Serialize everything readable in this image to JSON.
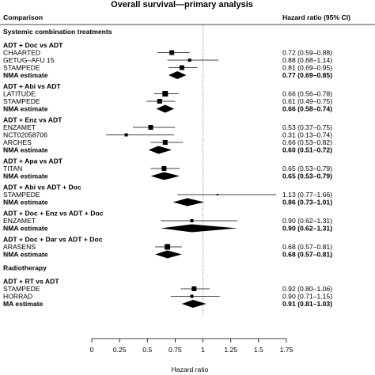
{
  "chart_data": {
    "type": "forest",
    "title": "Overall survival—primary analysis",
    "column_left": "Comparison",
    "column_right": "Hazard ratio (95% CI)",
    "xlabel": "Hazard ratio",
    "xlim": [
      0,
      1.75
    ],
    "ticks": [
      0,
      0.25,
      0.5,
      0.75,
      1,
      1.25,
      1.5,
      1.75
    ],
    "reference_line": 1,
    "sections": [
      {
        "heading": "Systemic combination treatments",
        "groups": [
          {
            "heading": "ADT + Doc vs ADT",
            "studies": [
              {
                "name": "CHAARTED",
                "hr": 0.72,
                "lo": 0.59,
                "hi": 0.88,
                "label": "0.72 (0.59–0.88)"
              },
              {
                "name": "GETUG–AFU 15",
                "hr": 0.88,
                "lo": 0.68,
                "hi": 1.14,
                "label": "0.88 (0.68–1.14)"
              },
              {
                "name": "STAMPEDE",
                "hr": 0.81,
                "lo": 0.69,
                "hi": 0.95,
                "label": "0.81 (0.69–0.95)"
              }
            ],
            "estimate": {
              "name": "NMA estimate",
              "hr": 0.77,
              "lo": 0.69,
              "hi": 0.85,
              "label": "0.77 (0.69–0.85)"
            }
          },
          {
            "heading": "ADT + Abi vs ADT",
            "studies": [
              {
                "name": "LATITUDE",
                "hr": 0.66,
                "lo": 0.56,
                "hi": 0.78,
                "label": "0.66 (0.56–0.78)"
              },
              {
                "name": "STAMPEDE",
                "hr": 0.61,
                "lo": 0.49,
                "hi": 0.75,
                "label": "0.61 (0.49–0.75)"
              }
            ],
            "estimate": {
              "name": "NMA estimate",
              "hr": 0.66,
              "lo": 0.58,
              "hi": 0.74,
              "label": "0.66 (0.58–0.74)"
            }
          },
          {
            "heading": "ADT + Enz vs ADT",
            "studies": [
              {
                "name": "ENZAMET",
                "hr": 0.53,
                "lo": 0.37,
                "hi": 0.75,
                "label": "0.53 (0.37–0.75)"
              },
              {
                "name": "NCT02058706",
                "hr": 0.31,
                "lo": 0.13,
                "hi": 0.74,
                "label": "0.31 (0.13–0.74)"
              },
              {
                "name": "ARCHES",
                "hr": 0.66,
                "lo": 0.53,
                "hi": 0.82,
                "label": "0.66 (0.53–0.82)"
              }
            ],
            "estimate": {
              "name": "NMA estimate",
              "hr": 0.6,
              "lo": 0.51,
              "hi": 0.72,
              "label": "0.60 (0.51–0.72)"
            }
          },
          {
            "heading": "ADT + Apa vs ADT",
            "studies": [
              {
                "name": "TITAN",
                "hr": 0.65,
                "lo": 0.53,
                "hi": 0.79,
                "label": "0.65 (0.53–0.79)"
              }
            ],
            "estimate": {
              "name": "NMA estimate",
              "hr": 0.65,
              "lo": 0.53,
              "hi": 0.79,
              "label": "0.65 (0.53–0.79)"
            }
          },
          {
            "heading": "ADT + Abi vs ADT + Doc",
            "studies": [
              {
                "name": "STAMPEDE",
                "hr": 1.13,
                "lo": 0.77,
                "hi": 1.66,
                "label": "1.13 (0.77–1.66)"
              }
            ],
            "estimate": {
              "name": "NMA estimate",
              "hr": 0.86,
              "lo": 0.73,
              "hi": 1.01,
              "label": "0.86 (0.73–1.01)"
            }
          },
          {
            "heading": "ADT + Doc + Enz vs ADT + Doc",
            "studies": [
              {
                "name": "ENZAMET",
                "hr": 0.9,
                "lo": 0.62,
                "hi": 1.31,
                "label": "0.90 (0.62–1.31)"
              }
            ],
            "estimate": {
              "name": "NMA estimate",
              "hr": 0.9,
              "lo": 0.62,
              "hi": 1.31,
              "label": "0.90 (0.62–1.31)"
            }
          },
          {
            "heading": "ADT + Doc + Dar vs ADT + Doc",
            "studies": [
              {
                "name": "ARASENS",
                "hr": 0.68,
                "lo": 0.57,
                "hi": 0.81,
                "label": "0.68 (0.57–0.81)"
              }
            ],
            "estimate": {
              "name": "NMA estimate",
              "hr": 0.68,
              "lo": 0.57,
              "hi": 0.81,
              "label": "0.68 (0.57–0.81)"
            }
          }
        ]
      },
      {
        "heading": "Radiotherapy",
        "groups": [
          {
            "heading": "ADT + RT vs ADT",
            "studies": [
              {
                "name": "STAMPEDE",
                "hr": 0.92,
                "lo": 0.8,
                "hi": 1.06,
                "label": "0.92 (0.80–1.06)"
              },
              {
                "name": "HORRAD",
                "hr": 0.9,
                "lo": 0.71,
                "hi": 1.15,
                "label": "0.90 (0.71–1.15)"
              }
            ],
            "estimate": {
              "name": "MA estimate",
              "hr": 0.91,
              "lo": 0.81,
              "hi": 1.03,
              "label": "0.91 (0.81–1.03)"
            }
          }
        ]
      }
    ]
  }
}
